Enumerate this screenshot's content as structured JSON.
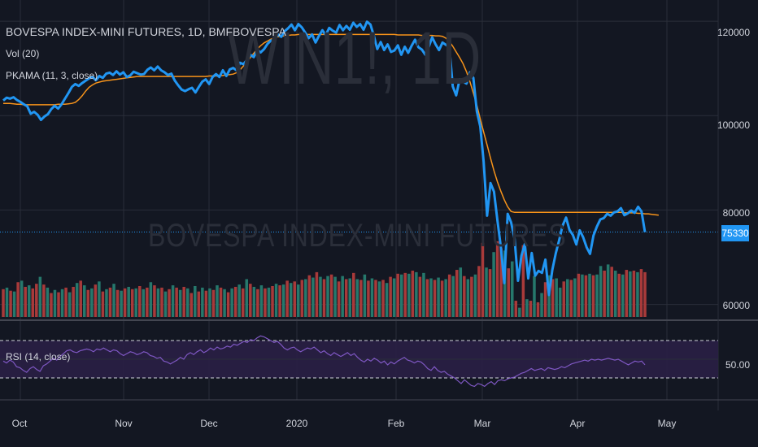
{
  "legend": {
    "symbol": "BOVESPA INDEX-MINI FUTURES, 1D, BMFBOVESPA",
    "volume": "Vol (20)",
    "indicator": "PKAMA (11, 3, close)",
    "rsi": "RSI (14, close)"
  },
  "watermark": {
    "ticker": "WIN1!, 1D",
    "name": "BOVESPA INDEX-MINI FUTURES"
  },
  "price_axis": {
    "ticks": [
      "120000",
      "100000",
      "80000",
      "60000"
    ],
    "last_price": "75330"
  },
  "rsi_axis": {
    "tick": "50.00"
  },
  "time_axis": {
    "ticks": [
      "Oct",
      "Nov",
      "Dec",
      "2020",
      "Feb",
      "Mar",
      "Apr",
      "May"
    ]
  },
  "colors": {
    "background": "#131722",
    "price_line": "#2196f3",
    "pkama_line": "#f7931a",
    "volume_up": "#26786c",
    "volume_down": "#a83a3a",
    "rsi_line": "#7e57c2",
    "rsi_band": "#2a1f45"
  },
  "chart_data": {
    "type": "line",
    "x_range": [
      "2019-10-01",
      "2020-04-22"
    ],
    "ylim": [
      57000,
      124500
    ],
    "last_price": 75330,
    "price": {
      "name": "WIN1!",
      "values": [
        103200,
        103800,
        103600,
        103900,
        103300,
        102900,
        102400,
        102000,
        100400,
        100800,
        100200,
        99100,
        99800,
        100300,
        101400,
        102100,
        101500,
        102400,
        103600,
        104800,
        106100,
        106700,
        106300,
        106900,
        107400,
        107900,
        108200,
        107500,
        108400,
        108000,
        108900,
        109100,
        108600,
        109400,
        108700,
        109200,
        108200,
        108500,
        109300,
        109000,
        108700,
        108800,
        109700,
        110200,
        109600,
        110400,
        109600,
        109200,
        108600,
        108900,
        107400,
        106400,
        105500,
        105200,
        105600,
        105900,
        104900,
        106100,
        107200,
        107700,
        106700,
        108200,
        108800,
        108200,
        109600,
        108400,
        109800,
        110100,
        109600,
        111200,
        110900,
        111800,
        112900,
        112400,
        113900,
        113400,
        114100,
        115200,
        115900,
        116100,
        117200,
        116700,
        117900,
        118500,
        119300,
        118100,
        119400,
        118700,
        117600,
        116400,
        117200,
        115500,
        116900,
        118100,
        117100,
        118600,
        118000,
        117600,
        119200,
        118100,
        119000,
        118200,
        119700,
        118800,
        119400,
        118200,
        119900,
        119300,
        116900,
        114100,
        115600,
        113900,
        115100,
        113500,
        113800,
        114900,
        112900,
        114600,
        113300,
        114800,
        116100,
        114500,
        114000,
        112900,
        114600,
        116600,
        115100,
        113900,
        115500,
        115000,
        114500,
        106200,
        104300,
        107700,
        107200,
        106800,
        109200,
        108000,
        100900,
        97700,
        90200,
        78800,
        85700,
        83900,
        77800,
        72200,
        64500,
        79200,
        77400,
        73900,
        65000,
        70300,
        72800,
        65500,
        70900,
        66100,
        67100,
        66700,
        69500,
        62000,
        67300,
        70800,
        73600,
        76700,
        78400,
        75800,
        74700,
        72700,
        75700,
        74200,
        72100,
        70700,
        74600,
        76500,
        78000,
        78300,
        79200,
        78800,
        79500,
        79700,
        80400,
        78900,
        79300,
        79900,
        79400,
        80700,
        79700,
        75330
      ]
    },
    "pkama": {
      "name": "PKAMA (11, 3, close)",
      "values": [
        102600,
        102600,
        102600,
        102500,
        102400,
        102400,
        102300,
        102300,
        102300,
        102300,
        102300,
        102300,
        102300,
        102300,
        102300,
        102300,
        102400,
        102400,
        102400,
        102500,
        102600,
        102800,
        103400,
        104200,
        105200,
        106000,
        106500,
        106900,
        107100,
        107300,
        107400,
        107500,
        107600,
        107700,
        107800,
        107900,
        108000,
        108100,
        108200,
        108300,
        108300,
        108300,
        108300,
        108300,
        108300,
        108300,
        108300,
        108300,
        108300,
        108300,
        108300,
        108300,
        108300,
        108300,
        108300,
        108300,
        108300,
        108300,
        108300,
        108300,
        108400,
        108400,
        108400,
        108400,
        108500,
        108600,
        108700,
        108800,
        109100,
        109700,
        110500,
        111400,
        112300,
        113200,
        114100,
        114800,
        115400,
        115800,
        116200,
        116500,
        116700,
        116800,
        116900,
        117000,
        117100,
        117100,
        117200,
        117200,
        117200,
        117200,
        117200,
        117200,
        117200,
        117200,
        117200,
        117200,
        117200,
        117200,
        117200,
        117200,
        117200,
        117200,
        117200,
        117200,
        117200,
        117200,
        117200,
        117200,
        117200,
        117200,
        117200,
        117200,
        117200,
        117200,
        117200,
        117100,
        117100,
        117100,
        117100,
        117100,
        117100,
        117100,
        117000,
        117000,
        117000,
        117000,
        116900,
        116900,
        116800,
        116400,
        115700,
        114700,
        113500,
        112300,
        111000,
        109300,
        107200,
        104800,
        102200,
        99300,
        96500,
        93800,
        91000,
        88300,
        86000,
        84000,
        82200,
        80700,
        79700,
        79500,
        79500,
        79500,
        79500,
        79500,
        79500,
        79500,
        79500,
        79500,
        79500,
        79500,
        79500,
        79500,
        79500,
        79500,
        79500,
        79500,
        79500,
        79500,
        79500,
        79500,
        79500,
        79500,
        79500,
        79500,
        79500,
        79500,
        79500,
        79500,
        79500,
        79500,
        79500,
        79400,
        79400,
        79400,
        79400,
        79300,
        79300,
        79200,
        79200,
        79100,
        79000,
        78900
      ]
    },
    "volume": {
      "name": "Vol (20)",
      "bars": [
        [
          0.36,
          0
        ],
        [
          0.38,
          1
        ],
        [
          0.34,
          0
        ],
        [
          0.33,
          1
        ],
        [
          0.45,
          0
        ],
        [
          0.47,
          1
        ],
        [
          0.39,
          0
        ],
        [
          0.41,
          1
        ],
        [
          0.37,
          0
        ],
        [
          0.43,
          0
        ],
        [
          0.52,
          1
        ],
        [
          0.42,
          0
        ],
        [
          0.38,
          1
        ],
        [
          0.31,
          0
        ],
        [
          0.35,
          1
        ],
        [
          0.32,
          0
        ],
        [
          0.36,
          1
        ],
        [
          0.38,
          0
        ],
        [
          0.32,
          1
        ],
        [
          0.39,
          0
        ],
        [
          0.44,
          1
        ],
        [
          0.47,
          0
        ],
        [
          0.41,
          1
        ],
        [
          0.35,
          0
        ],
        [
          0.37,
          1
        ],
        [
          0.42,
          0
        ],
        [
          0.46,
          1
        ],
        [
          0.33,
          0
        ],
        [
          0.36,
          1
        ],
        [
          0.38,
          0
        ],
        [
          0.43,
          1
        ],
        [
          0.35,
          0
        ],
        [
          0.34,
          1
        ],
        [
          0.37,
          0
        ],
        [
          0.39,
          1
        ],
        [
          0.36,
          0
        ],
        [
          0.37,
          1
        ],
        [
          0.4,
          0
        ],
        [
          0.36,
          1
        ],
        [
          0.38,
          0
        ],
        [
          0.45,
          1
        ],
        [
          0.41,
          0
        ],
        [
          0.37,
          1
        ],
        [
          0.38,
          0
        ],
        [
          0.33,
          1
        ],
        [
          0.36,
          0
        ],
        [
          0.41,
          1
        ],
        [
          0.38,
          0
        ],
        [
          0.35,
          1
        ],
        [
          0.39,
          0
        ],
        [
          0.37,
          1
        ],
        [
          0.31,
          0
        ],
        [
          0.4,
          1
        ],
        [
          0.33,
          0
        ],
        [
          0.38,
          1
        ],
        [
          0.34,
          0
        ],
        [
          0.37,
          1
        ],
        [
          0.35,
          0
        ],
        [
          0.41,
          1
        ],
        [
          0.38,
          0
        ],
        [
          0.36,
          1
        ],
        [
          0.32,
          0
        ],
        [
          0.37,
          1
        ],
        [
          0.39,
          0
        ],
        [
          0.42,
          1
        ],
        [
          0.37,
          0
        ],
        [
          0.49,
          1
        ],
        [
          0.43,
          0
        ],
        [
          0.39,
          1
        ],
        [
          0.36,
          0
        ],
        [
          0.41,
          1
        ],
        [
          0.37,
          0
        ],
        [
          0.38,
          1
        ],
        [
          0.4,
          0
        ],
        [
          0.43,
          1
        ],
        [
          0.41,
          0
        ],
        [
          0.42,
          1
        ],
        [
          0.47,
          0
        ],
        [
          0.44,
          1
        ],
        [
          0.46,
          0
        ],
        [
          0.42,
          1
        ],
        [
          0.48,
          0
        ],
        [
          0.49,
          1
        ],
        [
          0.54,
          0
        ],
        [
          0.51,
          1
        ],
        [
          0.58,
          0
        ],
        [
          0.52,
          1
        ],
        [
          0.49,
          0
        ],
        [
          0.53,
          1
        ],
        [
          0.55,
          0
        ],
        [
          0.52,
          1
        ],
        [
          0.46,
          0
        ],
        [
          0.53,
          1
        ],
        [
          0.49,
          0
        ],
        [
          0.5,
          1
        ],
        [
          0.57,
          0
        ],
        [
          0.49,
          1
        ],
        [
          0.48,
          0
        ],
        [
          0.55,
          1
        ],
        [
          0.47,
          0
        ],
        [
          0.5,
          1
        ],
        [
          0.48,
          0
        ],
        [
          0.46,
          1
        ],
        [
          0.48,
          0
        ],
        [
          0.44,
          1
        ],
        [
          0.52,
          0
        ],
        [
          0.5,
          1
        ],
        [
          0.56,
          0
        ],
        [
          0.55,
          1
        ],
        [
          0.57,
          0
        ],
        [
          0.56,
          1
        ],
        [
          0.6,
          0
        ],
        [
          0.58,
          1
        ],
        [
          0.52,
          0
        ],
        [
          0.57,
          1
        ],
        [
          0.49,
          0
        ],
        [
          0.5,
          1
        ],
        [
          0.48,
          0
        ],
        [
          0.51,
          1
        ],
        [
          0.47,
          0
        ],
        [
          0.49,
          1
        ],
        [
          0.55,
          0
        ],
        [
          0.53,
          1
        ],
        [
          0.61,
          0
        ],
        [
          0.64,
          1
        ],
        [
          0.53,
          0
        ],
        [
          0.49,
          1
        ],
        [
          0.52,
          0
        ],
        [
          0.55,
          1
        ],
        [
          0.66,
          0
        ],
        [
          0.96,
          0
        ],
        [
          0.64,
          1
        ],
        [
          0.62,
          0
        ],
        [
          0.84,
          1
        ],
        [
          0.98,
          0
        ],
        [
          0.89,
          0
        ],
        [
          0.86,
          1
        ],
        [
          0.63,
          0
        ],
        [
          0.72,
          1
        ],
        [
          0.21,
          0
        ],
        [
          0.12,
          1
        ],
        [
          0.93,
          0
        ],
        [
          0.23,
          1
        ],
        [
          0.21,
          0
        ],
        [
          0.53,
          1
        ],
        [
          0.19,
          0
        ],
        [
          0.31,
          1
        ],
        [
          0.45,
          0
        ],
        [
          0.54,
          1
        ],
        [
          0.49,
          0
        ],
        [
          0.5,
          1
        ],
        [
          0.38,
          1
        ],
        [
          0.46,
          0
        ],
        [
          0.49,
          1
        ],
        [
          0.48,
          0
        ],
        [
          0.5,
          1
        ],
        [
          0.56,
          0
        ],
        [
          0.55,
          1
        ],
        [
          0.54,
          0
        ],
        [
          0.56,
          1
        ],
        [
          0.54,
          0
        ],
        [
          0.55,
          1
        ],
        [
          0.66,
          1
        ],
        [
          0.6,
          0
        ],
        [
          0.68,
          1
        ],
        [
          0.65,
          0
        ],
        [
          0.6,
          1
        ],
        [
          0.56,
          0
        ],
        [
          0.55,
          1
        ],
        [
          0.61,
          0
        ],
        [
          0.59,
          1
        ],
        [
          0.6,
          0
        ],
        [
          0.58,
          1
        ],
        [
          0.62,
          0
        ],
        [
          0.58,
          0
        ]
      ]
    },
    "rsi": {
      "name": "RSI (14, close)",
      "levels": [
        70,
        30
      ],
      "values": [
        48,
        46,
        49,
        47,
        42,
        41,
        38,
        36,
        40,
        42,
        39,
        37,
        43,
        45,
        48,
        51,
        49,
        53,
        56,
        59,
        60,
        58,
        57,
        59,
        60,
        61,
        60,
        58,
        61,
        60,
        62,
        60,
        58,
        60,
        59,
        56,
        54,
        56,
        58,
        57,
        55,
        56,
        58,
        57,
        54,
        53,
        51,
        52,
        48,
        47,
        45,
        47,
        49,
        52,
        50,
        55,
        57,
        55,
        58,
        60,
        57,
        59,
        62,
        60,
        63,
        61,
        62,
        64,
        63,
        66,
        65,
        67,
        69,
        68,
        71,
        70,
        73,
        75,
        74,
        72,
        70,
        68,
        69,
        66,
        62,
        60,
        62,
        63,
        60,
        58,
        60,
        62,
        61,
        63,
        60,
        57,
        59,
        56,
        54,
        57,
        55,
        53,
        55,
        57,
        54,
        56,
        52,
        49,
        47,
        50,
        48,
        51,
        49,
        46,
        48,
        44,
        47,
        45,
        48,
        50,
        52,
        49,
        48,
        46,
        48,
        47,
        44,
        40,
        38,
        42,
        38,
        36,
        37,
        34,
        32,
        30,
        27,
        24,
        28,
        25,
        22,
        21,
        24,
        23,
        21,
        24,
        26,
        23,
        27,
        28,
        27,
        29,
        30,
        31,
        33,
        35,
        36,
        38,
        40,
        38,
        39,
        40,
        38,
        41,
        40,
        39,
        40,
        42,
        41,
        43,
        45,
        46,
        47,
        48,
        49,
        48,
        50,
        49,
        50,
        49,
        50,
        51,
        50,
        49,
        50,
        48,
        46,
        44,
        46,
        48,
        47,
        48,
        44
      ]
    }
  }
}
